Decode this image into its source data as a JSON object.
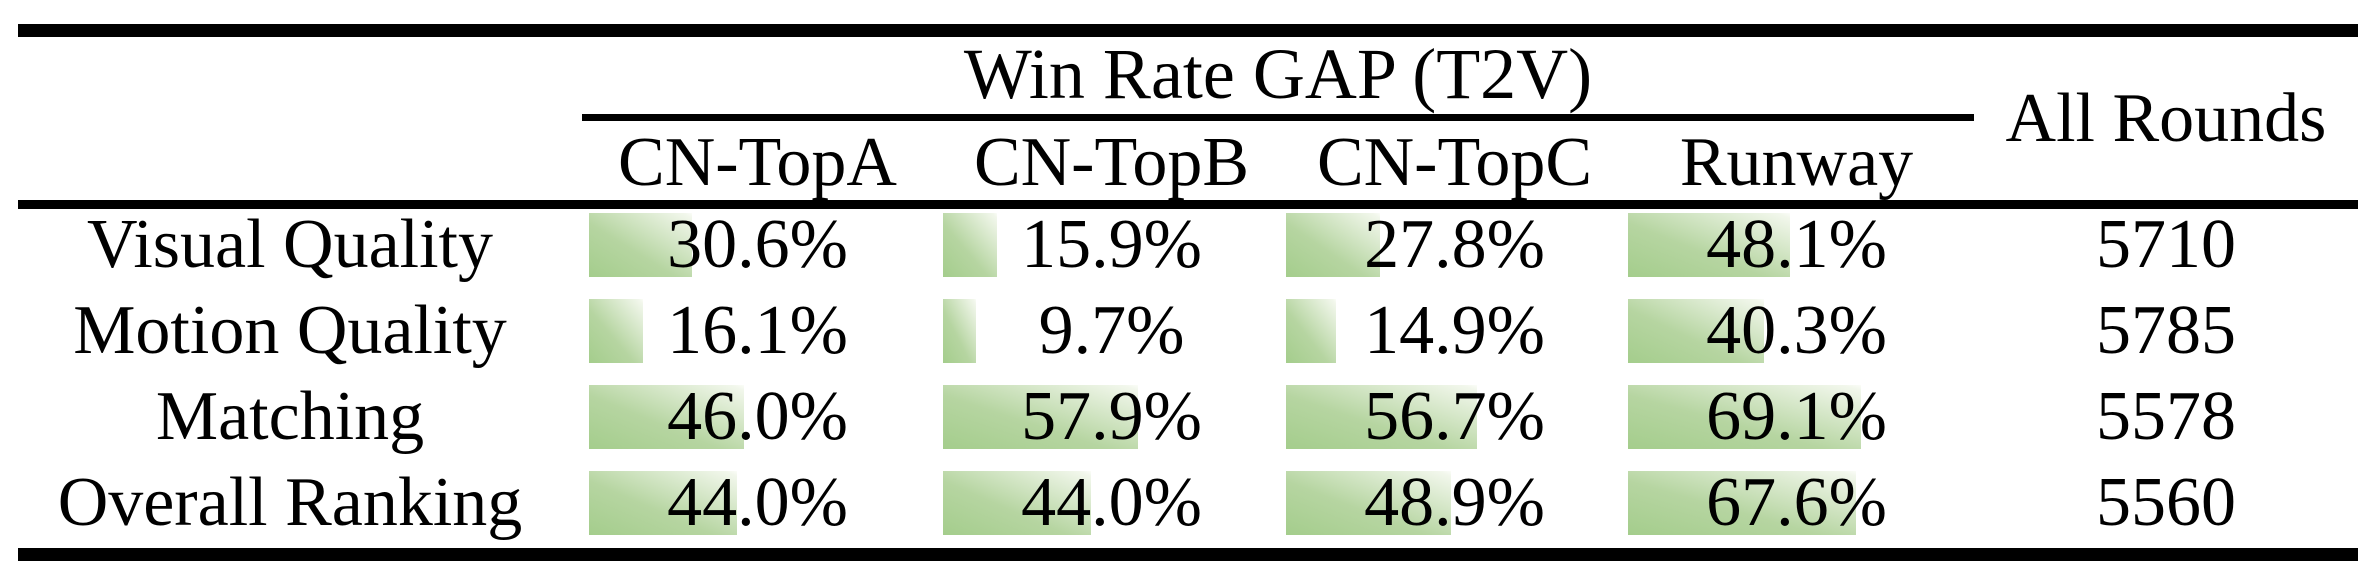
{
  "colors": {
    "background": "#ffffff",
    "text": "#000000",
    "rule_black": "#000000",
    "bar_gradient_start": "#a4cd8c",
    "bar_gradient_mid": "#b6d5a1",
    "bar_gradient_end": "#f2f7ec"
  },
  "table": {
    "group_header": "Win Rate GAP (T2V)",
    "all_rounds_header": "All Rounds",
    "columns": [
      "CN-TopA",
      "CN-TopB",
      "CN-TopC",
      "Runway"
    ],
    "rows": [
      {
        "label": "Visual Quality",
        "values": [
          "30.6%",
          "15.9%",
          "27.8%",
          "48.1%"
        ],
        "bars": [
          30.6,
          15.9,
          27.8,
          48.1
        ],
        "all_rounds": "5710"
      },
      {
        "label": "Motion Quality",
        "values": [
          "16.1%",
          "9.7%",
          "14.9%",
          "40.3%"
        ],
        "bars": [
          16.1,
          9.7,
          14.9,
          40.3
        ],
        "all_rounds": "5785"
      },
      {
        "label": "Matching",
        "values": [
          "46.0%",
          "57.9%",
          "56.7%",
          "69.1%"
        ],
        "bars": [
          46.0,
          57.9,
          56.7,
          69.1
        ],
        "all_rounds": "5578"
      },
      {
        "label": "Overall Ranking",
        "values": [
          "44.0%",
          "44.0%",
          "48.9%",
          "67.6%"
        ],
        "bars": [
          44.0,
          44.0,
          48.9,
          67.6
        ],
        "all_rounds": "5560"
      }
    ]
  },
  "chart_data": {
    "type": "table",
    "title": "Win Rate GAP (T2V)",
    "columns": [
      "CN-TopA",
      "CN-TopB",
      "CN-TopC",
      "Runway",
      "All Rounds"
    ],
    "row_labels": [
      "Visual Quality",
      "Motion Quality",
      "Matching",
      "Overall Ranking"
    ],
    "series": [
      {
        "name": "CN-TopA",
        "values": [
          30.6,
          16.1,
          46.0,
          44.0
        ]
      },
      {
        "name": "CN-TopB",
        "values": [
          15.9,
          9.7,
          57.9,
          44.0
        ]
      },
      {
        "name": "CN-TopC",
        "values": [
          27.8,
          14.9,
          56.7,
          48.9
        ]
      },
      {
        "name": "Runway",
        "values": [
          48.1,
          40.3,
          69.1,
          67.6
        ]
      }
    ],
    "all_rounds": [
      5710,
      5785,
      5578,
      5560
    ],
    "value_unit": "percent",
    "layout": "green data bars behind values, bar length proportional to percentage of cell width"
  }
}
